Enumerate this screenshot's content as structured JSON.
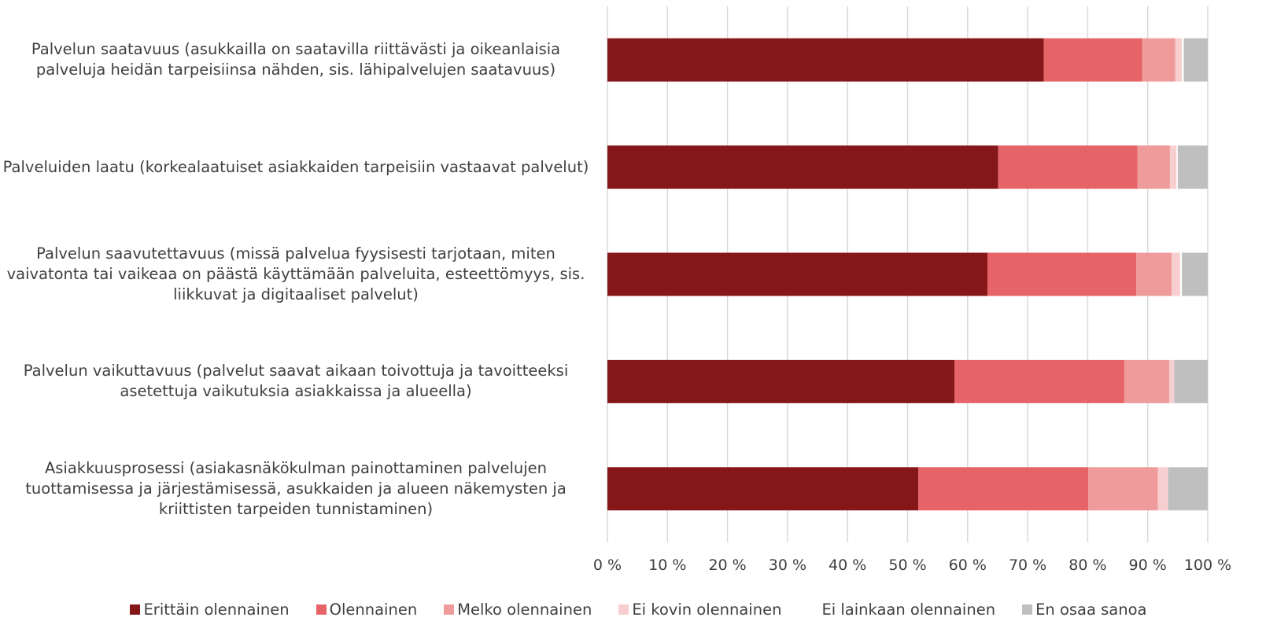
{
  "chart_data": {
    "type": "stacked_barh",
    "categories": [
      "Palvelun saatavuus (asukkailla on saatavilla riittävästi ja oikeanlaisia palveluja heidän tarpeisiinsa nähden, sis. lähipalvelujen saatavuus)",
      "Palveluiden laatu (korkealaatuiset asiakkaiden tarpeisiin vastaavat palvelut)",
      "Palvelun saavutettavuus (missä palvelua fyysisesti tarjotaan, miten vaivatonta tai vaikeaa on päästä käyttämään palveluita, esteettömyys, sis. liikkuvat ja digitaaliset palvelut)",
      "Palvelun vaikuttavuus (palvelut saavat aikaan toivottuja ja tavoitteeksi asetettuja vaikutuksia asiakkaissa ja alueella)",
      "Asiakkuusprosessi (asiakasnäkökulman painottaminen palvelujen tuottamisessa ja järjestämisessä, asukkaiden ja alueen näkemysten ja kriittisten tarpeiden tunnistaminen)"
    ],
    "series": [
      {
        "name": "Erittäin olennainen",
        "color": "#861719",
        "values": [
          72.7,
          65.1,
          63.3,
          57.8,
          51.8
        ]
      },
      {
        "name": "Olennainen",
        "color": "#e66467",
        "values": [
          16.4,
          23.2,
          24.8,
          28.3,
          28.3
        ]
      },
      {
        "name": "Melko olennainen",
        "color": "#ef9a9b",
        "values": [
          5.5,
          5.4,
          5.9,
          7.5,
          11.6
        ]
      },
      {
        "name": "Ei kovin olennainen",
        "color": "#f8cfd0",
        "values": [
          1.1,
          1.1,
          1.4,
          0.8,
          1.7
        ]
      },
      {
        "name": "Ei lainkaan olennainen",
        "color": "#ffffff",
        "values": [
          0.3,
          0.2,
          0.3,
          0,
          0
        ]
      },
      {
        "name": "En osaa sanoa",
        "color": "#bfbfbf",
        "values": [
          4.0,
          5.0,
          4.3,
          5.6,
          6.6
        ]
      }
    ],
    "xlim": [
      0,
      100
    ],
    "xticks": [
      {
        "value": 0,
        "label": "0 %"
      },
      {
        "value": 10,
        "label": "10 %"
      },
      {
        "value": 20,
        "label": "20 %"
      },
      {
        "value": 30,
        "label": "30 %"
      },
      {
        "value": 40,
        "label": "40 %"
      },
      {
        "value": 50,
        "label": "50 %"
      },
      {
        "value": 60,
        "label": "60 %"
      },
      {
        "value": 70,
        "label": "70 %"
      },
      {
        "value": 80,
        "label": "80 %"
      },
      {
        "value": 90,
        "label": "90 %"
      },
      {
        "value": 100,
        "label": "100 %"
      }
    ],
    "grid": true,
    "legend": "bottom"
  }
}
